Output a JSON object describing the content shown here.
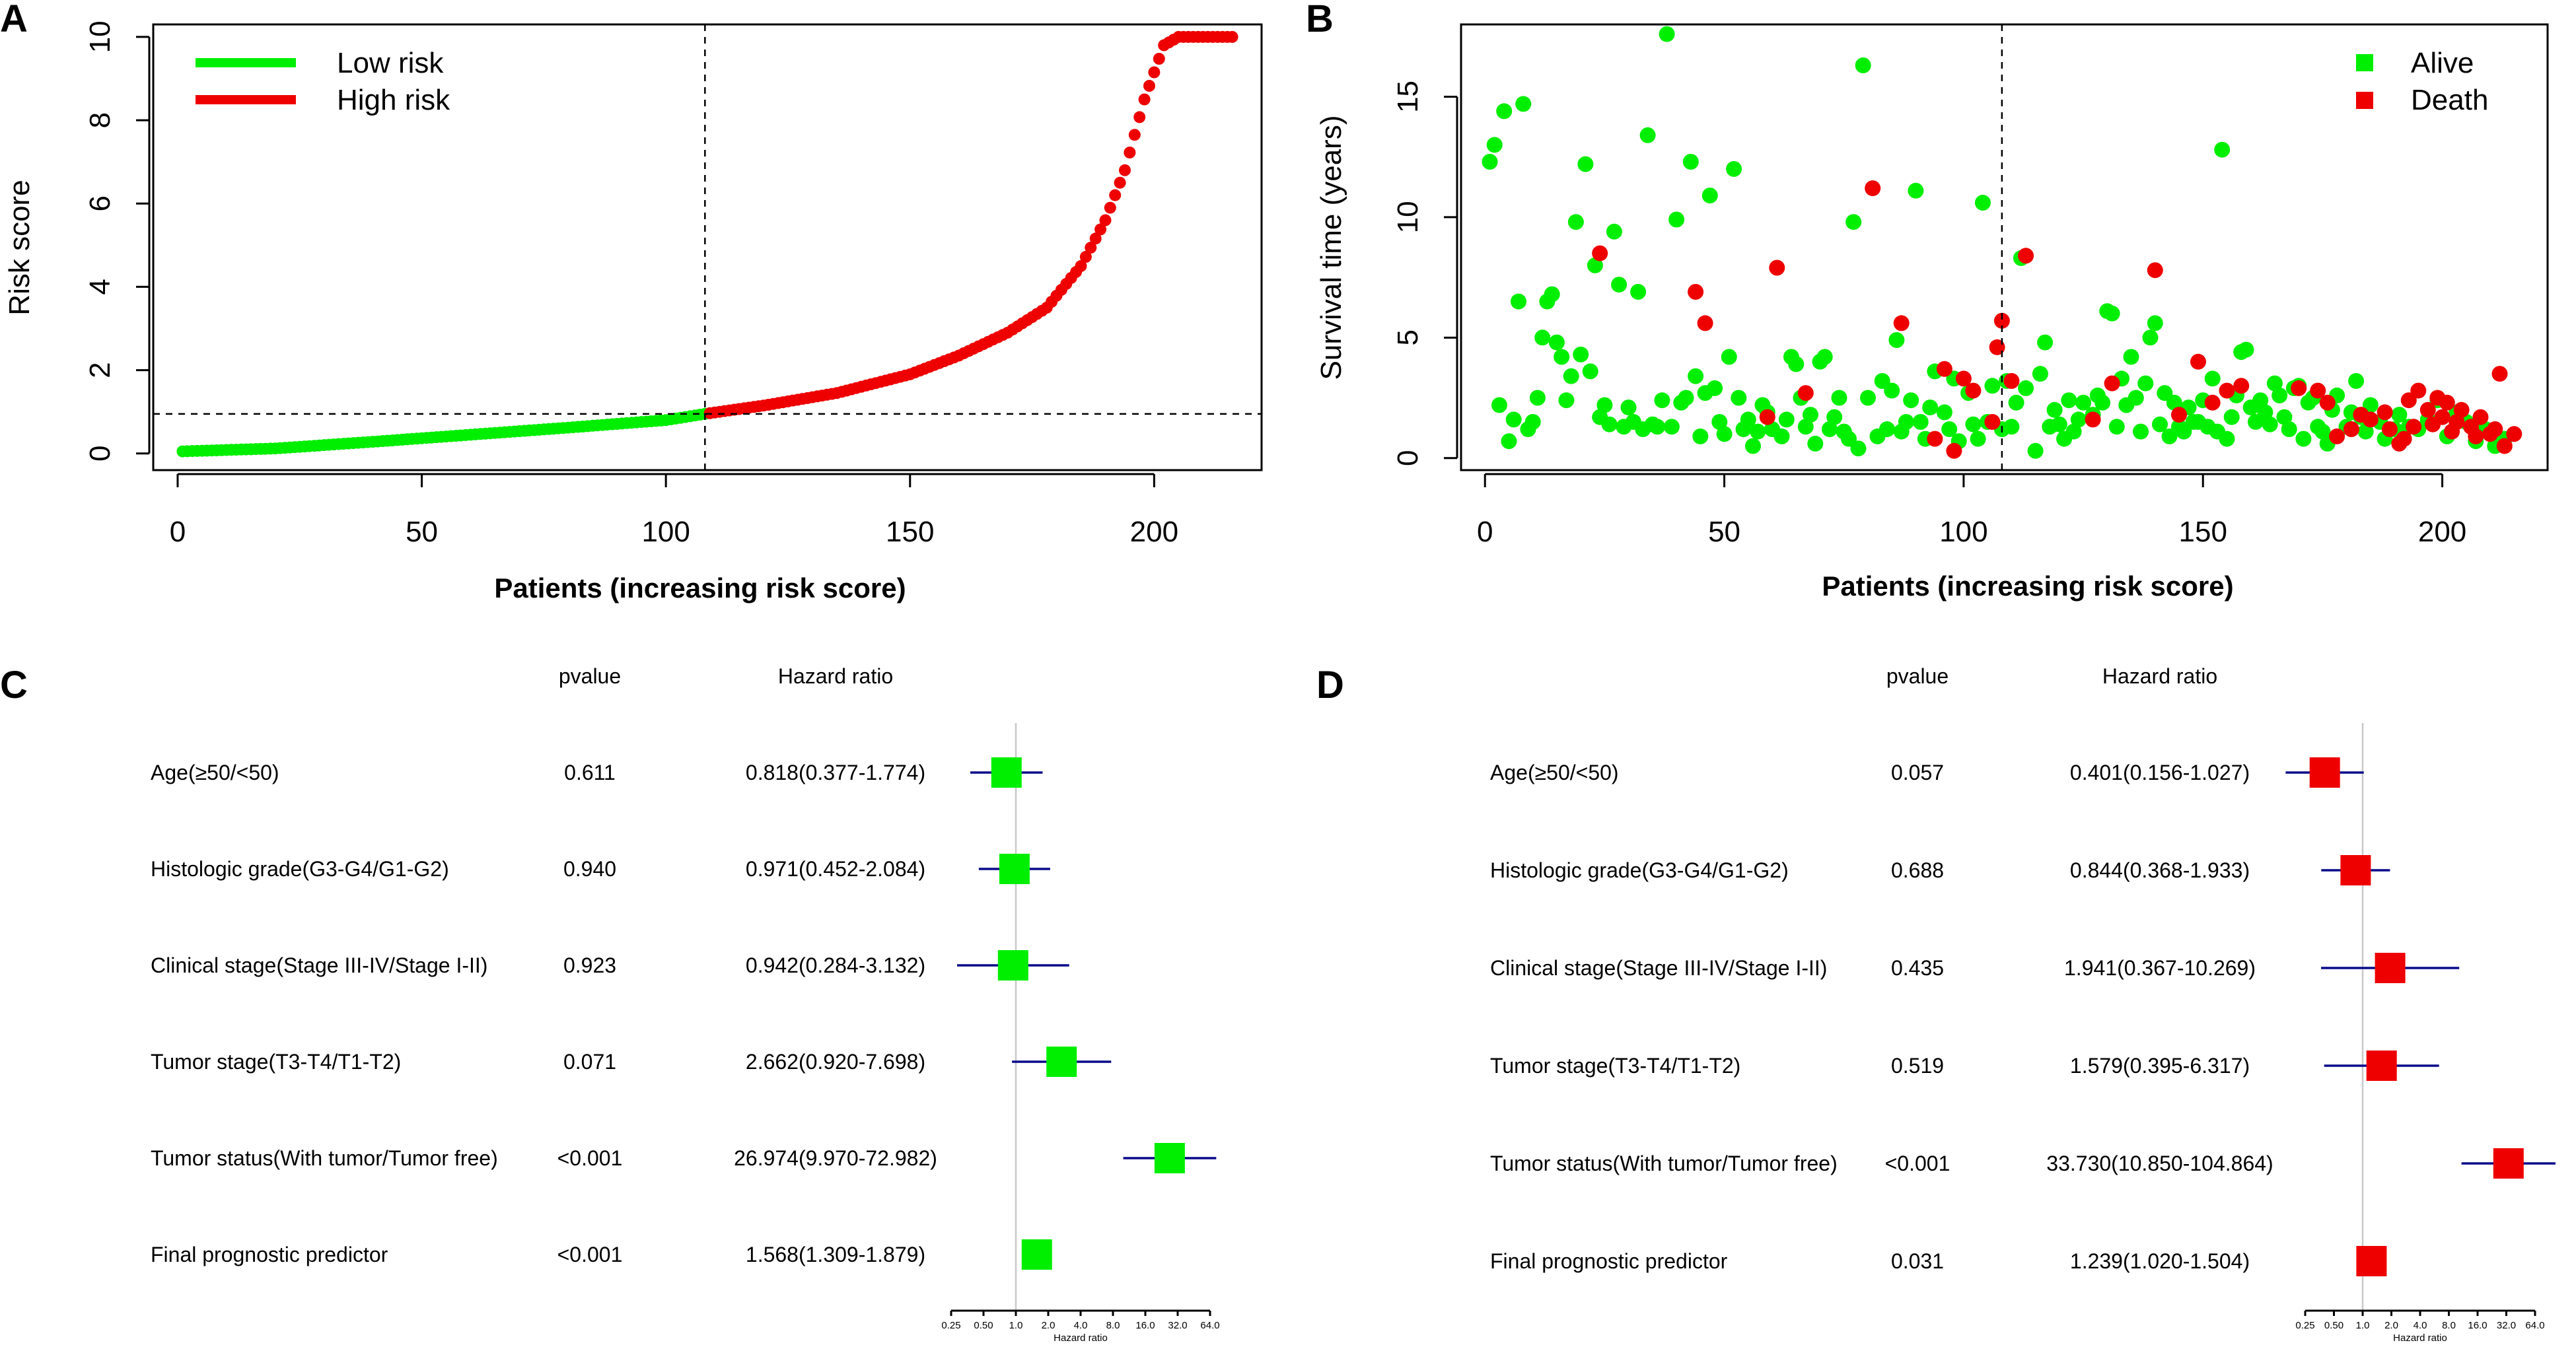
{
  "chart_data": [
    {
      "id": "A",
      "panel_label": "A",
      "type": "scatter",
      "xlabel": "Patients (increasing risk score)",
      "ylabel": "Risk score",
      "xlim": [
        -5,
        222
      ],
      "ylim": [
        -0.4,
        10.3
      ],
      "xticks": [
        0,
        50,
        100,
        150,
        200
      ],
      "yticks": [
        0,
        2,
        4,
        6,
        8,
        10
      ],
      "cutoff_x": 108,
      "cutoff_y": 0.95,
      "n_patients": 216,
      "low_risk_end": 1.05,
      "max_score": 10,
      "legend": [
        {
          "label": "Low risk",
          "color": "#00ee00"
        },
        {
          "label": "High risk",
          "color": "#ee0000"
        }
      ],
      "curve_anchors": [
        [
          1,
          0.05
        ],
        [
          20,
          0.12
        ],
        [
          40,
          0.28
        ],
        [
          60,
          0.45
        ],
        [
          80,
          0.62
        ],
        [
          100,
          0.8
        ],
        [
          108,
          0.95
        ],
        [
          120,
          1.15
        ],
        [
          135,
          1.45
        ],
        [
          150,
          1.9
        ],
        [
          160,
          2.35
        ],
        [
          170,
          2.9
        ],
        [
          178,
          3.5
        ],
        [
          185,
          4.5
        ],
        [
          190,
          5.6
        ],
        [
          194,
          6.8
        ],
        [
          198,
          8.5
        ],
        [
          202,
          9.8
        ],
        [
          205,
          10
        ],
        [
          216,
          10
        ]
      ]
    },
    {
      "id": "B",
      "panel_label": "B",
      "type": "scatter",
      "xlabel": "Patients (increasing risk score)",
      "ylabel": "Survival time (years)",
      "xlim": [
        -5,
        222
      ],
      "ylim": [
        -0.5,
        18
      ],
      "xticks": [
        0,
        50,
        100,
        150,
        200
      ],
      "yticks": [
        0,
        5,
        10,
        15
      ],
      "cutoff_x": 108,
      "legend": [
        {
          "label": "Alive",
          "color": "#00ee00"
        },
        {
          "label": "Death",
          "color": "#ee0000"
        }
      ],
      "alive_points": [
        [
          1,
          12.3
        ],
        [
          2,
          13
        ],
        [
          3,
          2.2
        ],
        [
          4,
          14.4
        ],
        [
          5,
          0.7
        ],
        [
          6,
          1.6
        ],
        [
          7,
          6.5
        ],
        [
          8,
          14.7
        ],
        [
          9,
          1.2
        ],
        [
          10,
          1.5
        ],
        [
          11,
          2.5
        ],
        [
          12,
          5
        ],
        [
          13,
          6.5
        ],
        [
          14,
          6.8
        ],
        [
          15,
          4.8
        ],
        [
          16,
          4.2
        ],
        [
          17,
          2.4
        ],
        [
          18,
          3.4
        ],
        [
          19,
          9.8
        ],
        [
          20,
          4.3
        ],
        [
          21,
          12.2
        ],
        [
          22,
          3.6
        ],
        [
          23,
          8
        ],
        [
          24,
          1.7
        ],
        [
          25,
          2.2
        ],
        [
          26,
          1.4
        ],
        [
          27,
          9.4
        ],
        [
          28,
          7.2
        ],
        [
          29,
          1.3
        ],
        [
          30,
          2.1
        ],
        [
          31,
          1.5
        ],
        [
          32,
          6.9
        ],
        [
          33,
          1.2
        ],
        [
          34,
          13.4
        ],
        [
          35,
          1.4
        ],
        [
          36,
          1.3
        ],
        [
          37,
          2.4
        ],
        [
          38,
          17.6
        ],
        [
          39,
          1.3
        ],
        [
          40,
          9.9
        ],
        [
          41,
          2.3
        ],
        [
          42,
          2.5
        ],
        [
          43,
          12.3
        ],
        [
          44,
          3.4
        ],
        [
          45,
          0.9
        ],
        [
          46,
          2.7
        ],
        [
          47,
          10.9
        ],
        [
          48,
          2.9
        ],
        [
          49,
          1.5
        ],
        [
          50,
          1
        ],
        [
          51,
          4.2
        ],
        [
          52,
          12
        ],
        [
          53,
          2.5
        ],
        [
          54,
          1.2
        ],
        [
          55,
          1.6
        ],
        [
          56,
          0.5
        ],
        [
          57,
          1.1
        ],
        [
          58,
          2.2
        ],
        [
          59,
          1.9
        ],
        [
          60,
          1.2
        ],
        [
          62,
          0.9
        ],
        [
          63,
          1.6
        ],
        [
          64,
          4.2
        ],
        [
          65,
          3.9
        ],
        [
          66,
          2.5
        ],
        [
          67,
          1.3
        ],
        [
          68,
          1.8
        ],
        [
          69,
          0.6
        ],
        [
          70,
          4
        ],
        [
          71,
          4.2
        ],
        [
          72,
          1.2
        ],
        [
          73,
          1.7
        ],
        [
          74,
          2.5
        ],
        [
          75,
          1.1
        ],
        [
          76,
          0.8
        ],
        [
          77,
          9.8
        ],
        [
          78,
          0.4
        ],
        [
          79,
          16.3
        ],
        [
          80,
          2.5
        ],
        [
          82,
          0.9
        ],
        [
          83,
          3.2
        ],
        [
          84,
          1.2
        ],
        [
          85,
          2.8
        ],
        [
          86,
          4.9
        ],
        [
          87,
          1.1
        ],
        [
          88,
          1.5
        ],
        [
          89,
          2.4
        ],
        [
          90,
          11.1
        ],
        [
          91,
          1.5
        ],
        [
          92,
          0.8
        ],
        [
          93,
          2.1
        ],
        [
          94,
          3.6
        ],
        [
          96,
          1.9
        ],
        [
          97,
          1.2
        ],
        [
          98,
          3.3
        ],
        [
          99,
          0.7
        ],
        [
          101,
          2.7
        ],
        [
          102,
          1.4
        ],
        [
          103,
          0.8
        ],
        [
          104,
          10.6
        ],
        [
          105,
          1.5
        ],
        [
          106,
          3
        ],
        [
          108,
          1.2
        ],
        [
          109,
          3.2
        ],
        [
          110,
          1.3
        ],
        [
          111,
          2.3
        ],
        [
          112,
          8.3
        ],
        [
          113,
          2.9
        ],
        [
          115,
          0.3
        ],
        [
          116,
          3.5
        ],
        [
          117,
          4.8
        ],
        [
          118,
          1.3
        ],
        [
          119,
          2
        ],
        [
          120,
          1.4
        ],
        [
          121,
          0.8
        ],
        [
          122,
          2.4
        ],
        [
          123,
          1.1
        ],
        [
          124,
          1.6
        ],
        [
          125,
          2.3
        ],
        [
          127,
          1.8
        ],
        [
          128,
          2.6
        ],
        [
          129,
          2.3
        ],
        [
          130,
          6.1
        ],
        [
          131,
          6
        ],
        [
          132,
          1.3
        ],
        [
          133,
          3.3
        ],
        [
          134,
          2.2
        ],
        [
          135,
          4.2
        ],
        [
          136,
          2.5
        ],
        [
          137,
          1.1
        ],
        [
          138,
          3.1
        ],
        [
          139,
          5
        ],
        [
          140,
          5.6
        ],
        [
          141,
          1.4
        ],
        [
          142,
          2.7
        ],
        [
          143,
          0.9
        ],
        [
          144,
          2.3
        ],
        [
          145,
          1.3
        ],
        [
          146,
          1.1
        ],
        [
          147,
          2.1
        ],
        [
          148,
          1.5
        ],
        [
          149,
          1.5
        ],
        [
          150,
          2.4
        ],
        [
          151,
          1.3
        ],
        [
          152,
          3.3
        ],
        [
          153,
          1.1
        ],
        [
          154,
          12.8
        ],
        [
          155,
          0.8
        ],
        [
          156,
          1.7
        ],
        [
          157,
          2.6
        ],
        [
          158,
          4.4
        ],
        [
          159,
          4.5
        ],
        [
          160,
          2.1
        ],
        [
          161,
          1.5
        ],
        [
          162,
          2.4
        ],
        [
          163,
          1.9
        ],
        [
          164,
          1.4
        ],
        [
          165,
          3.1
        ],
        [
          166,
          2.6
        ],
        [
          167,
          1.7
        ],
        [
          168,
          1.2
        ],
        [
          169,
          2.9
        ],
        [
          170,
          3
        ],
        [
          171,
          0.8
        ],
        [
          172,
          2.3
        ],
        [
          173,
          2.5
        ],
        [
          174,
          1.3
        ],
        [
          175,
          1.1
        ],
        [
          176,
          0.6
        ],
        [
          177,
          2
        ],
        [
          178,
          2.6
        ],
        [
          180,
          1.3
        ],
        [
          181,
          1.9
        ],
        [
          182,
          3.2
        ],
        [
          183,
          1.7
        ],
        [
          184,
          1.1
        ],
        [
          185,
          2.2
        ],
        [
          187,
          1.5
        ],
        [
          188,
          0.8
        ],
        [
          190,
          1.2
        ],
        [
          191,
          1.8
        ],
        [
          193,
          1.3
        ],
        [
          195,
          1.2
        ],
        [
          197,
          1.6
        ],
        [
          199,
          2.4
        ],
        [
          201,
          0.9
        ],
        [
          203,
          1.9
        ],
        [
          205,
          1.5
        ],
        [
          207,
          0.7
        ],
        [
          209,
          1.2
        ],
        [
          211,
          0.5
        ],
        [
          213,
          0.8
        ]
      ],
      "death_points": [
        [
          24,
          8.5
        ],
        [
          44,
          6.9
        ],
        [
          46,
          5.6
        ],
        [
          59,
          1.7
        ],
        [
          61,
          7.9
        ],
        [
          67,
          2.7
        ],
        [
          81,
          11.2
        ],
        [
          87,
          5.6
        ],
        [
          94,
          0.8
        ],
        [
          96,
          3.7
        ],
        [
          98,
          0.3
        ],
        [
          100,
          3.3
        ],
        [
          102,
          2.8
        ],
        [
          106,
          1.5
        ],
        [
          107,
          4.6
        ],
        [
          108,
          5.7
        ],
        [
          110,
          3.2
        ],
        [
          113,
          8.4
        ],
        [
          127,
          1.6
        ],
        [
          131,
          3.1
        ],
        [
          140,
          7.8
        ],
        [
          145,
          1.8
        ],
        [
          149,
          4
        ],
        [
          152,
          2.3
        ],
        [
          155,
          2.8
        ],
        [
          158,
          3
        ],
        [
          170,
          2.9
        ],
        [
          174,
          2.8
        ],
        [
          176,
          2.3
        ],
        [
          178,
          0.9
        ],
        [
          181,
          1.2
        ],
        [
          183,
          1.8
        ],
        [
          185,
          1.6
        ],
        [
          188,
          1.9
        ],
        [
          189,
          1.2
        ],
        [
          191,
          0.6
        ],
        [
          192,
          0.8
        ],
        [
          193,
          2.4
        ],
        [
          194,
          1.3
        ],
        [
          195,
          2.8
        ],
        [
          197,
          2
        ],
        [
          198,
          1.4
        ],
        [
          199,
          2.5
        ],
        [
          200,
          1.7
        ],
        [
          201,
          2.3
        ],
        [
          202,
          1.1
        ],
        [
          203,
          1.5
        ],
        [
          204,
          2
        ],
        [
          206,
          1.3
        ],
        [
          207,
          0.9
        ],
        [
          208,
          1.7
        ],
        [
          210,
          1
        ],
        [
          211,
          1.2
        ],
        [
          212,
          3.5
        ],
        [
          213,
          0.5
        ],
        [
          215,
          1
        ]
      ]
    },
    {
      "id": "C",
      "panel_label": "C",
      "type": "forest",
      "col_pvalue": "pvalue",
      "col_hr": "Hazard ratio",
      "xlabel": "Hazard ratio",
      "x_scale": "log2",
      "xticks": [
        "0.25",
        "0.50",
        "1.0",
        "2.0",
        "4.0",
        "8.0",
        "16.0",
        "32.0",
        "64.0"
      ],
      "marker_color": "#00ee00",
      "rows": [
        {
          "label": "Age(≥50/<50)",
          "pvalue": "0.611",
          "hr_text": "0.818(0.377-1.774)",
          "hr": 0.818,
          "lo": 0.377,
          "hi": 1.774
        },
        {
          "label": "Histologic grade(G3-G4/G1-G2)",
          "pvalue": "0.940",
          "hr_text": "0.971(0.452-2.084)",
          "hr": 0.971,
          "lo": 0.452,
          "hi": 2.084
        },
        {
          "label": "Clinical stage(Stage III-IV/Stage I-II)",
          "pvalue": "0.923",
          "hr_text": "0.942(0.284-3.132)",
          "hr": 0.942,
          "lo": 0.284,
          "hi": 3.132
        },
        {
          "label": "Tumor stage(T3-T4/T1-T2)",
          "pvalue": "0.071",
          "hr_text": "2.662(0.920-7.698)",
          "hr": 2.662,
          "lo": 0.92,
          "hi": 7.698
        },
        {
          "label": "Tumor status(With tumor/Tumor free)",
          "pvalue": "<0.001",
          "hr_text": "26.974(9.970-72.982)",
          "hr": 26.974,
          "lo": 9.97,
          "hi": 72.982
        },
        {
          "label": "Final prognostic predictor",
          "pvalue": "<0.001",
          "hr_text": "1.568(1.309-1.879)",
          "hr": 1.568,
          "lo": 1.309,
          "hi": 1.879
        }
      ]
    },
    {
      "id": "D",
      "panel_label": "D",
      "type": "forest",
      "col_pvalue": "pvalue",
      "col_hr": "Hazard ratio",
      "xlabel": "Hazard ratio",
      "x_scale": "log2",
      "xticks": [
        "0.25",
        "0.50",
        "1.0",
        "2.0",
        "4.0",
        "8.0",
        "16.0",
        "32.0",
        "64.0"
      ],
      "marker_color": "#ee0000",
      "rows": [
        {
          "label": "Age(≥50/<50)",
          "pvalue": "0.057",
          "hr_text": "0.401(0.156-1.027)",
          "hr": 0.401,
          "lo": 0.156,
          "hi": 1.027
        },
        {
          "label": "Histologic grade(G3-G4/G1-G2)",
          "pvalue": "0.688",
          "hr_text": "0.844(0.368-1.933)",
          "hr": 0.844,
          "lo": 0.368,
          "hi": 1.933
        },
        {
          "label": "Clinical stage(Stage III-IV/Stage I-II)",
          "pvalue": "0.435",
          "hr_text": "1.941(0.367-10.269)",
          "hr": 1.941,
          "lo": 0.367,
          "hi": 10.269
        },
        {
          "label": "Tumor stage(T3-T4/T1-T2)",
          "pvalue": "0.519",
          "hr_text": "1.579(0.395-6.317)",
          "hr": 1.579,
          "lo": 0.395,
          "hi": 6.317
        },
        {
          "label": "Tumor status(With tumor/Tumor free)",
          "pvalue": "<0.001",
          "hr_text": "33.730(10.850-104.864)",
          "hr": 33.73,
          "lo": 10.85,
          "hi": 104.864
        },
        {
          "label": "Final prognostic predictor",
          "pvalue": "0.031",
          "hr_text": "1.239(1.020-1.504)",
          "hr": 1.239,
          "lo": 1.02,
          "hi": 1.504
        }
      ]
    }
  ]
}
